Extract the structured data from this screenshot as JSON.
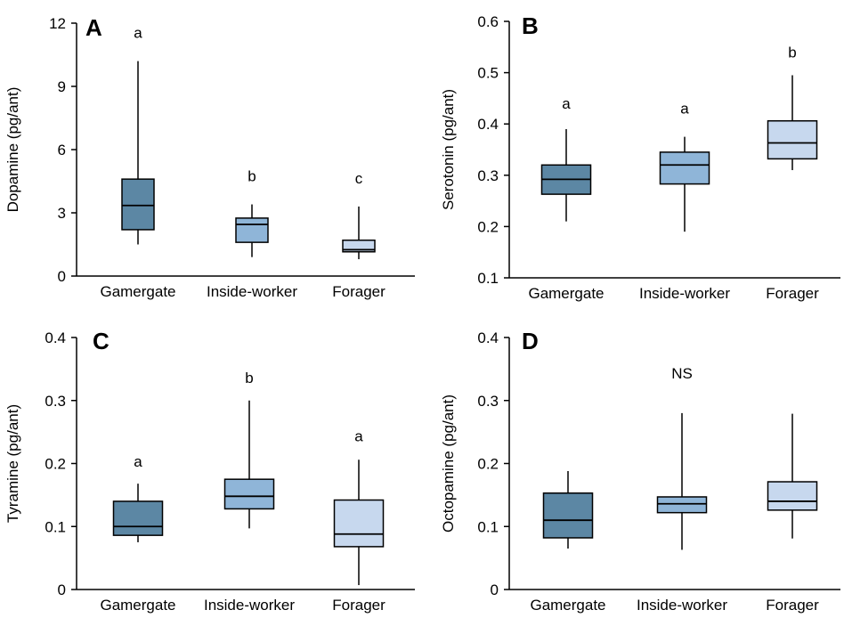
{
  "colors": {
    "gamergate": "#5c87a4",
    "inside_worker": "#8fb5d8",
    "forager": "#c7d8ee",
    "stroke": "#000000"
  },
  "chart_data": [
    {
      "type": "box",
      "panel_label": "A",
      "ylabel": "Dopamine (pg/ant)",
      "ylim": [
        0,
        12
      ],
      "yticks": [
        "0",
        "3",
        "6",
        "9",
        "12"
      ],
      "tick_values": [
        0,
        3,
        6,
        9,
        12
      ],
      "categories": [
        "Gamergate",
        "Inside-worker",
        "Forager"
      ],
      "boxes": [
        {
          "min": 1.5,
          "q1": 2.2,
          "median": 3.35,
          "q3": 4.6,
          "max": 10.2
        },
        {
          "min": 0.9,
          "q1": 1.6,
          "median": 2.45,
          "q3": 2.75,
          "max": 3.4
        },
        {
          "min": 0.8,
          "q1": 1.15,
          "median": 1.25,
          "q3": 1.7,
          "max": 3.3
        }
      ],
      "group_letters": [
        "a",
        "b",
        "c"
      ],
      "letter_y": [
        11.3,
        4.5,
        4.4
      ]
    },
    {
      "type": "box",
      "panel_label": "B",
      "ylabel": "Serotonin (pg/ant)",
      "ylim": [
        0.1,
        0.6
      ],
      "yticks": [
        "0.1",
        "0.2",
        "0.3",
        "0.4",
        "0.5",
        "0.6"
      ],
      "tick_values": [
        0.1,
        0.2,
        0.3,
        0.4,
        0.5,
        0.6
      ],
      "categories": [
        "Gamergate",
        "Inside-worker",
        "Forager"
      ],
      "boxes": [
        {
          "min": 0.21,
          "q1": 0.263,
          "median": 0.292,
          "q3": 0.32,
          "max": 0.39
        },
        {
          "min": 0.19,
          "q1": 0.283,
          "median": 0.32,
          "q3": 0.345,
          "max": 0.375
        },
        {
          "min": 0.31,
          "q1": 0.332,
          "median": 0.363,
          "q3": 0.406,
          "max": 0.495
        }
      ],
      "group_letters": [
        "a",
        "a",
        "b"
      ],
      "letter_y": [
        0.43,
        0.42,
        0.53
      ]
    },
    {
      "type": "box",
      "panel_label": "C",
      "ylabel": "Tyramine (pg/ant)",
      "ylim": [
        0,
        0.4
      ],
      "yticks": [
        "0",
        "0.1",
        "0.2",
        "0.3",
        "0.4"
      ],
      "tick_values": [
        0,
        0.1,
        0.2,
        0.3,
        0.4
      ],
      "categories": [
        "Gamergate",
        "Inside-worker",
        "Forager"
      ],
      "boxes": [
        {
          "min": 0.075,
          "q1": 0.086,
          "median": 0.1,
          "q3": 0.14,
          "max": 0.168
        },
        {
          "min": 0.097,
          "q1": 0.128,
          "median": 0.148,
          "q3": 0.175,
          "max": 0.3
        },
        {
          "min": 0.007,
          "q1": 0.068,
          "median": 0.088,
          "q3": 0.142,
          "max": 0.206
        }
      ],
      "group_letters": [
        "a",
        "b",
        "a"
      ],
      "letter_y": [
        0.195,
        0.328,
        0.235
      ]
    },
    {
      "type": "box",
      "panel_label": "D",
      "ylabel": "Octopamine (pg/ant)",
      "ylim": [
        0,
        0.4
      ],
      "yticks": [
        "0",
        "0.1",
        "0.2",
        "0.3",
        "0.4"
      ],
      "tick_values": [
        0,
        0.1,
        0.2,
        0.3,
        0.4
      ],
      "categories": [
        "Gamergate",
        "Inside-worker",
        "Forager"
      ],
      "boxes": [
        {
          "min": 0.065,
          "q1": 0.082,
          "median": 0.11,
          "q3": 0.153,
          "max": 0.188
        },
        {
          "min": 0.063,
          "q1": 0.122,
          "median": 0.136,
          "q3": 0.147,
          "max": 0.28
        },
        {
          "min": 0.081,
          "q1": 0.126,
          "median": 0.14,
          "q3": 0.171,
          "max": 0.279
        }
      ],
      "significance_label": "NS",
      "significance_y": 0.335
    }
  ]
}
